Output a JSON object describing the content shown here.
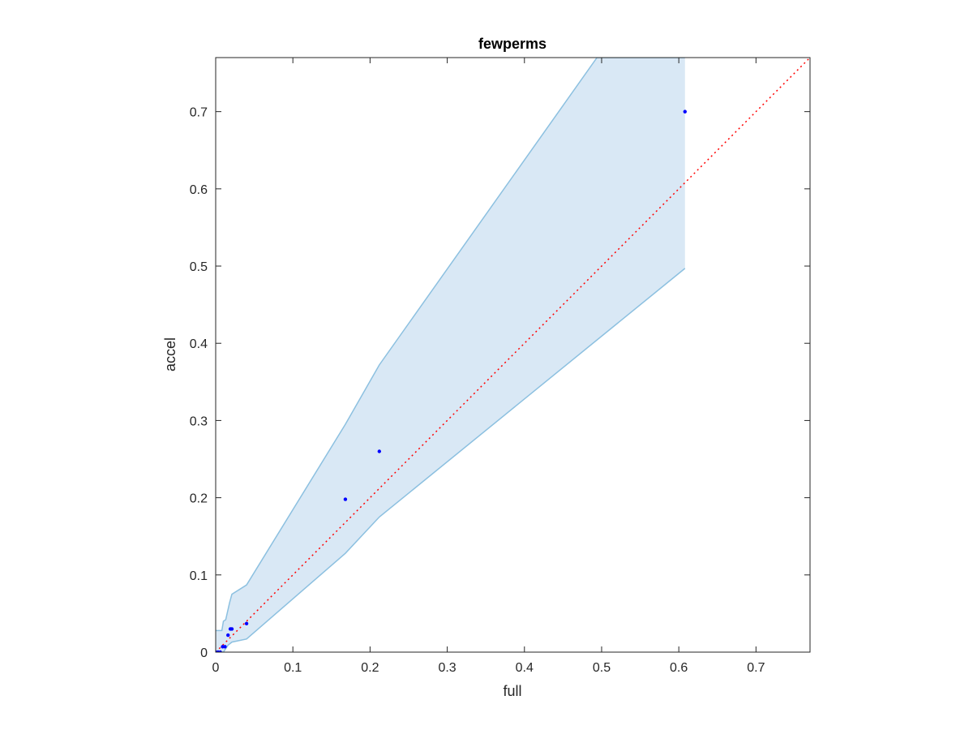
{
  "chart_data": {
    "type": "scatter",
    "title": "fewperms",
    "xlabel": "full",
    "ylabel": "accel",
    "xlim": [
      0,
      0.77
    ],
    "ylim": [
      0,
      0.77
    ],
    "xticks": [
      0,
      0.1,
      0.2,
      0.3,
      0.4,
      0.5,
      0.6,
      0.7
    ],
    "yticks": [
      0,
      0.1,
      0.2,
      0.3,
      0.4,
      0.5,
      0.6,
      0.7
    ],
    "xtick_labels": [
      "0",
      "0.1",
      "0.2",
      "0.3",
      "0.4",
      "0.5",
      "0.6",
      "0.7"
    ],
    "ytick_labels": [
      "0",
      "0.1",
      "0.2",
      "0.3",
      "0.4",
      "0.5",
      "0.6",
      "0.7"
    ],
    "grid": false,
    "colors": {
      "points": "#0000ff",
      "band_fill": "#d9e8f5",
      "band_edge": "#8cc0e0",
      "identity_line": "#ff0000",
      "axes": "#262626"
    },
    "points": [
      {
        "x": 0.0,
        "y": 0.0
      },
      {
        "x": 0.003,
        "y": 0.0
      },
      {
        "x": 0.006,
        "y": 0.0
      },
      {
        "x": 0.009,
        "y": 0.007
      },
      {
        "x": 0.012,
        "y": 0.007
      },
      {
        "x": 0.016,
        "y": 0.022
      },
      {
        "x": 0.019,
        "y": 0.03
      },
      {
        "x": 0.021,
        "y": 0.03
      },
      {
        "x": 0.04,
        "y": 0.037
      },
      {
        "x": 0.168,
        "y": 0.198
      },
      {
        "x": 0.212,
        "y": 0.26
      },
      {
        "x": 0.608,
        "y": 0.7
      }
    ],
    "band_upper": [
      {
        "x": 0.0,
        "y": 0.028
      },
      {
        "x": 0.008,
        "y": 0.028
      },
      {
        "x": 0.01,
        "y": 0.04
      },
      {
        "x": 0.013,
        "y": 0.042
      },
      {
        "x": 0.018,
        "y": 0.064
      },
      {
        "x": 0.021,
        "y": 0.075
      },
      {
        "x": 0.04,
        "y": 0.087
      },
      {
        "x": 0.168,
        "y": 0.295
      },
      {
        "x": 0.212,
        "y": 0.372
      },
      {
        "x": 0.494,
        "y": 0.77
      },
      {
        "x": 0.608,
        "y": 0.77
      }
    ],
    "band_lower": [
      {
        "x": 0.0,
        "y": 0.0
      },
      {
        "x": 0.01,
        "y": 0.0
      },
      {
        "x": 0.016,
        "y": 0.009
      },
      {
        "x": 0.021,
        "y": 0.013
      },
      {
        "x": 0.04,
        "y": 0.017
      },
      {
        "x": 0.168,
        "y": 0.128
      },
      {
        "x": 0.212,
        "y": 0.175
      },
      {
        "x": 0.608,
        "y": 0.497
      }
    ],
    "identity_line": {
      "from": [
        0,
        0
      ],
      "to": [
        0.77,
        0.77
      ]
    }
  }
}
